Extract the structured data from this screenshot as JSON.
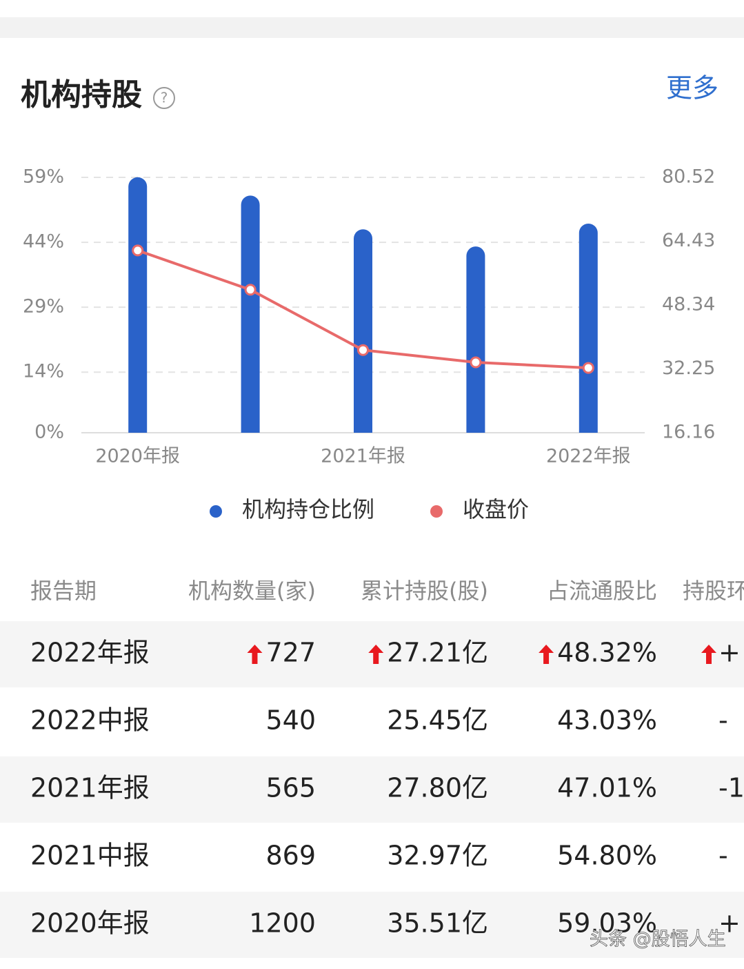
{
  "header": {
    "title": "机构持股",
    "help": "?",
    "more": "更多"
  },
  "chart_data": {
    "type": "bar-line",
    "categories": [
      "2020年报",
      null,
      "2021年报",
      null,
      "2022年报"
    ],
    "series": [
      {
        "name": "机构持仓比例",
        "color": "#2a62c9",
        "type": "bar",
        "values": [
          59.03,
          54.8,
          47.01,
          43.03,
          48.32
        ]
      },
      {
        "name": "收盘价",
        "color": "#e86a6a",
        "type": "line",
        "axis": "y2",
        "values": [
          62.1,
          52.2,
          37.0,
          33.9,
          32.5
        ]
      }
    ],
    "ylim": [
      0,
      59
    ],
    "yticks": [
      {
        "value": 0,
        "label": "0%"
      },
      {
        "value": 14,
        "label": "14%"
      },
      {
        "value": 29,
        "label": "29%"
      },
      {
        "value": 44,
        "label": "44%"
      },
      {
        "value": 59,
        "label": "59%"
      }
    ],
    "y2lim": [
      16.16,
      80.52
    ],
    "y2ticks": [
      16.16,
      32.25,
      48.34,
      64.43,
      80.52
    ],
    "grid": true,
    "legend": "bottom"
  },
  "table": {
    "columns": [
      "报告期",
      "机构数量(家)",
      "累计持股(股)",
      "占流通股比",
      "持股环"
    ],
    "rows": [
      [
        "2022年报",
        "727",
        "27.21亿",
        "48.32%",
        "+"
      ],
      [
        "2022中报",
        "540",
        "25.45亿",
        "43.03%",
        "-"
      ],
      [
        "2021年报",
        "565",
        "27.80亿",
        "47.01%",
        "-1"
      ],
      [
        "2021中报",
        "869",
        "32.97亿",
        "54.80%",
        "-"
      ],
      [
        "2020年报",
        "1200",
        "35.51亿",
        "59.03%",
        "+"
      ]
    ],
    "up_rows": [
      true,
      false,
      false,
      false,
      false
    ]
  },
  "watermark": "头条 @股悟人生"
}
